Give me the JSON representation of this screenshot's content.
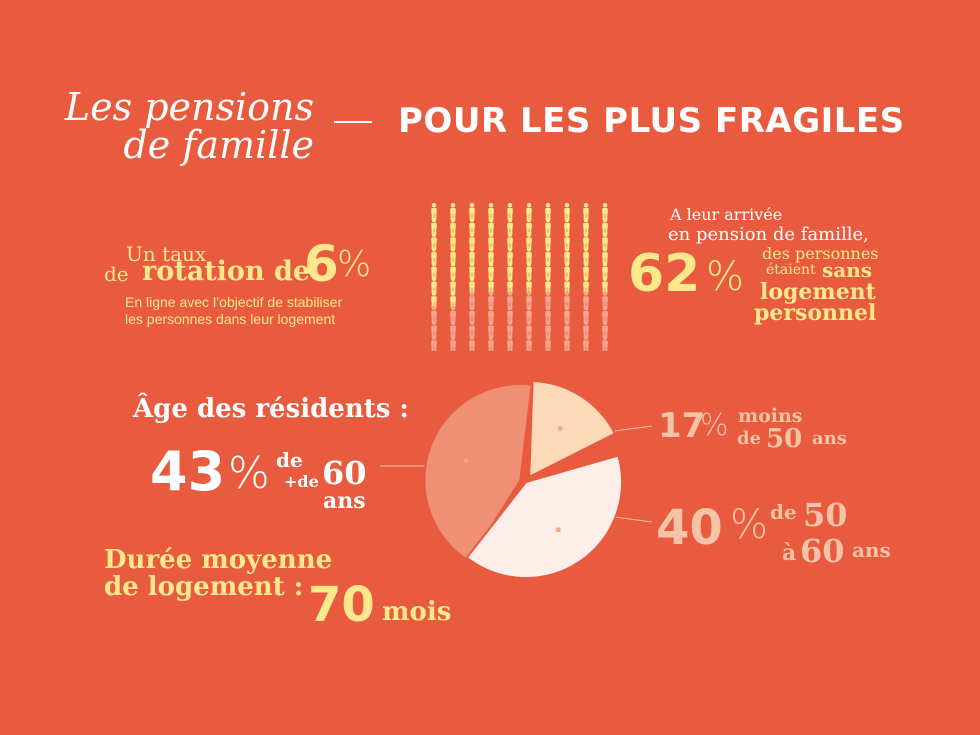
{
  "title": {
    "line1": "Les pensions",
    "line2": "de famille",
    "dash": "—",
    "right": "POUR LES PLUS FRAGILES"
  },
  "rotation": {
    "line1": "Un taux",
    "line2_prefix": "de",
    "line2_word": "rotation de",
    "value": "6",
    "pct": "%",
    "note1": "En ligne avec l’objectif de stabiliser",
    "note2": "les personnes dans leur logement"
  },
  "arrival": {
    "line1": "A leur arrivée",
    "line2": "en pension de famille,",
    "value": "62",
    "pct": "%",
    "line3": "des personnes",
    "line4a": "étaient",
    "line4b": "sans",
    "line5": "logement",
    "line6": "personnel",
    "icons_total": 100,
    "icons_highlight": 62,
    "highlight_color": "#fde98c",
    "muted_color": "#f4a58c"
  },
  "age": {
    "heading": "Âge des résidents :",
    "over60": {
      "value": "43",
      "pct": "%",
      "a": "de",
      "b": "+de",
      "c": "60",
      "d": "ans"
    },
    "under50": {
      "value": "17",
      "pct": "%",
      "a": "moins",
      "b": "de",
      "c": "50",
      "d": "ans"
    },
    "range": {
      "value": "40",
      "pct": "%",
      "a": "de",
      "b": "50",
      "c": "à",
      "d": "60",
      "e": "ans"
    }
  },
  "duration": {
    "line1": "Durée moyenne",
    "line2": "de logement :",
    "value": "70",
    "unit": "mois"
  },
  "chart_data": {
    "type": "pie",
    "categories": [
      "+de 60 ans",
      "moins de 50 ans",
      "de 50 à 60 ans"
    ],
    "values": [
      43,
      17,
      40
    ],
    "colors": [
      "#ef8f74",
      "#fcd9b8",
      "#fdeeea"
    ]
  }
}
